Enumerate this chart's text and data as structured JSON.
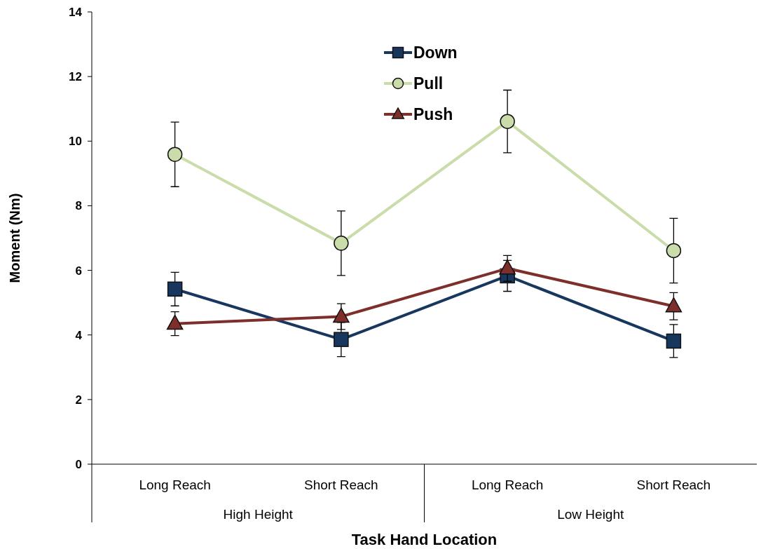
{
  "chart_data": {
    "type": "line",
    "xlabel": "Task Hand Location",
    "ylabel": "Moment (Nm)",
    "categories": [
      "Long Reach",
      "Short Reach",
      "Long Reach",
      "Short Reach"
    ],
    "annotations": [
      "High Height",
      "Low Height"
    ],
    "ylim": [
      0,
      14
    ],
    "yticks": [
      0,
      2,
      4,
      6,
      8,
      10,
      12,
      14
    ],
    "grid": false,
    "legend": "top",
    "series": [
      {
        "name": "Down",
        "color": "#17375e",
        "marker": "square",
        "values": [
          5.42,
          3.86,
          5.83,
          3.81
        ],
        "errors": [
          0.52,
          0.53,
          0.48,
          0.51
        ]
      },
      {
        "name": "Pull",
        "color": "#c9dcaa",
        "marker": "circle",
        "values": [
          9.59,
          6.84,
          10.61,
          6.61
        ],
        "errors": [
          1.0,
          1.0,
          0.97,
          1.0
        ]
      },
      {
        "name": "Push",
        "color": "#7f2f2b",
        "marker": "triangle",
        "values": [
          4.35,
          4.57,
          6.06,
          4.89
        ],
        "errors": [
          0.37,
          0.4,
          0.4,
          0.42
        ]
      }
    ]
  }
}
